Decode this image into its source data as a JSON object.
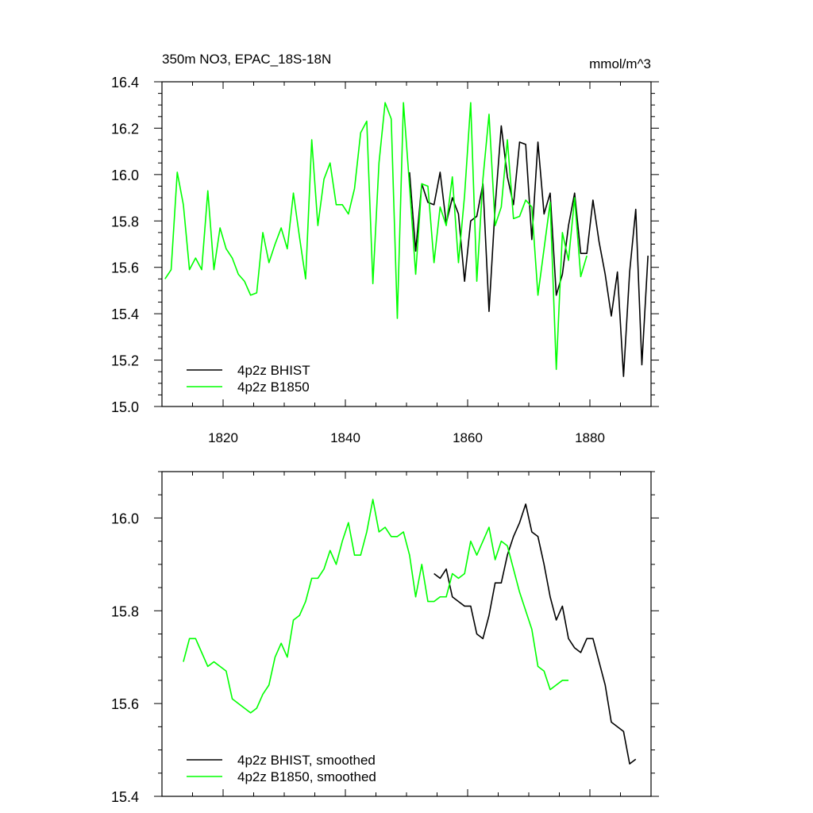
{
  "chart_data": [
    {
      "type": "line",
      "title": "350m NO3, EPAC_18S-18N",
      "units": "mmol/m^3",
      "xlabel": "",
      "ylabel": "",
      "xlim": [
        1810,
        1890
      ],
      "ylim": [
        15.0,
        16.4
      ],
      "xticks": [
        1820,
        1840,
        1860,
        1880
      ],
      "xtick_labels": [
        "1820",
        "1840",
        "1860",
        "1880"
      ],
      "yticks": [
        15.0,
        15.2,
        15.4,
        15.6,
        15.8,
        16.0,
        16.2,
        16.4
      ],
      "ytick_labels": [
        "15.0",
        "15.2",
        "15.4",
        "15.6",
        "15.8",
        "16.0",
        "16.2",
        "16.4"
      ],
      "legend_position": "bottom-left",
      "series": [
        {
          "name": "4p2z BHIST",
          "color": "#000000",
          "x_start": 1850.5,
          "x_step": 1,
          "values": [
            16.01,
            15.67,
            15.96,
            15.88,
            15.87,
            16.01,
            15.79,
            15.9,
            15.83,
            15.54,
            15.8,
            15.82,
            15.96,
            15.41,
            15.86,
            16.21,
            15.99,
            15.87,
            16.14,
            16.13,
            15.72,
            16.14,
            15.83,
            15.92,
            15.48,
            15.57,
            15.78,
            15.92,
            15.66,
            15.66,
            15.89,
            15.71,
            15.57,
            15.39,
            15.58,
            15.13,
            15.58,
            15.85,
            15.18,
            15.65
          ]
        },
        {
          "name": "4p2z B1850",
          "color": "#00ff00",
          "x_start": 1810.5,
          "x_step": 1,
          "values": [
            15.55,
            15.59,
            16.01,
            15.87,
            15.59,
            15.64,
            15.59,
            15.93,
            15.59,
            15.77,
            15.68,
            15.64,
            15.57,
            15.54,
            15.48,
            15.49,
            15.75,
            15.62,
            15.7,
            15.77,
            15.68,
            15.92,
            15.73,
            15.55,
            16.15,
            15.78,
            15.98,
            16.05,
            15.87,
            15.87,
            15.83,
            15.94,
            16.18,
            16.23,
            15.53,
            16.05,
            16.31,
            16.24,
            15.38,
            16.31,
            15.95,
            15.57,
            15.96,
            15.95,
            15.62,
            15.86,
            15.78,
            15.99,
            15.62,
            15.91,
            16.31,
            15.54,
            15.98,
            16.26,
            15.78,
            15.86,
            16.15,
            15.81,
            15.82,
            15.89,
            15.86,
            15.48,
            15.68,
            15.88,
            15.16,
            15.75,
            15.63,
            15.9,
            15.56,
            15.65
          ]
        }
      ]
    },
    {
      "type": "line",
      "title": "",
      "xlabel": "",
      "ylabel": "",
      "xlim": [
        1810,
        1890
      ],
      "ylim": [
        15.4,
        16.1
      ],
      "xticks": [
        1820,
        1840,
        1860,
        1880
      ],
      "xtick_labels": [],
      "yticks": [
        15.4,
        15.6,
        15.8,
        16.0
      ],
      "ytick_labels": [
        "15.4",
        "15.6",
        "15.8",
        "16.0"
      ],
      "legend_position": "bottom-left",
      "series": [
        {
          "name": "4p2z BHIST, smoothed",
          "color": "#000000",
          "x_start": 1854.5,
          "x_step": 1,
          "values": [
            15.88,
            15.87,
            15.89,
            15.83,
            15.82,
            15.81,
            15.81,
            15.75,
            15.74,
            15.79,
            15.86,
            15.86,
            15.92,
            15.96,
            15.99,
            16.03,
            15.97,
            15.96,
            15.9,
            15.83,
            15.78,
            15.81,
            15.74,
            15.72,
            15.71,
            15.74,
            15.74,
            15.69,
            15.64,
            15.56,
            15.55,
            15.54,
            15.47,
            15.48
          ]
        },
        {
          "name": "4p2z B1850, smoothed",
          "color": "#00ff00",
          "x_start": 1813.5,
          "x_step": 1,
          "values": [
            15.69,
            15.74,
            15.74,
            15.71,
            15.68,
            15.69,
            15.68,
            15.67,
            15.61,
            15.6,
            15.59,
            15.58,
            15.59,
            15.62,
            15.64,
            15.7,
            15.73,
            15.7,
            15.78,
            15.79,
            15.82,
            15.87,
            15.87,
            15.89,
            15.93,
            15.9,
            15.95,
            15.99,
            15.92,
            15.92,
            15.97,
            16.04,
            15.97,
            15.98,
            15.96,
            15.96,
            15.97,
            15.92,
            15.83,
            15.9,
            15.82,
            15.82,
            15.83,
            15.83,
            15.88,
            15.87,
            15.88,
            15.95,
            15.92,
            15.95,
            15.98,
            15.91,
            15.95,
            15.94,
            15.89,
            15.84,
            15.8,
            15.76,
            15.68,
            15.67,
            15.63,
            15.64,
            15.65,
            15.65
          ]
        }
      ]
    }
  ]
}
